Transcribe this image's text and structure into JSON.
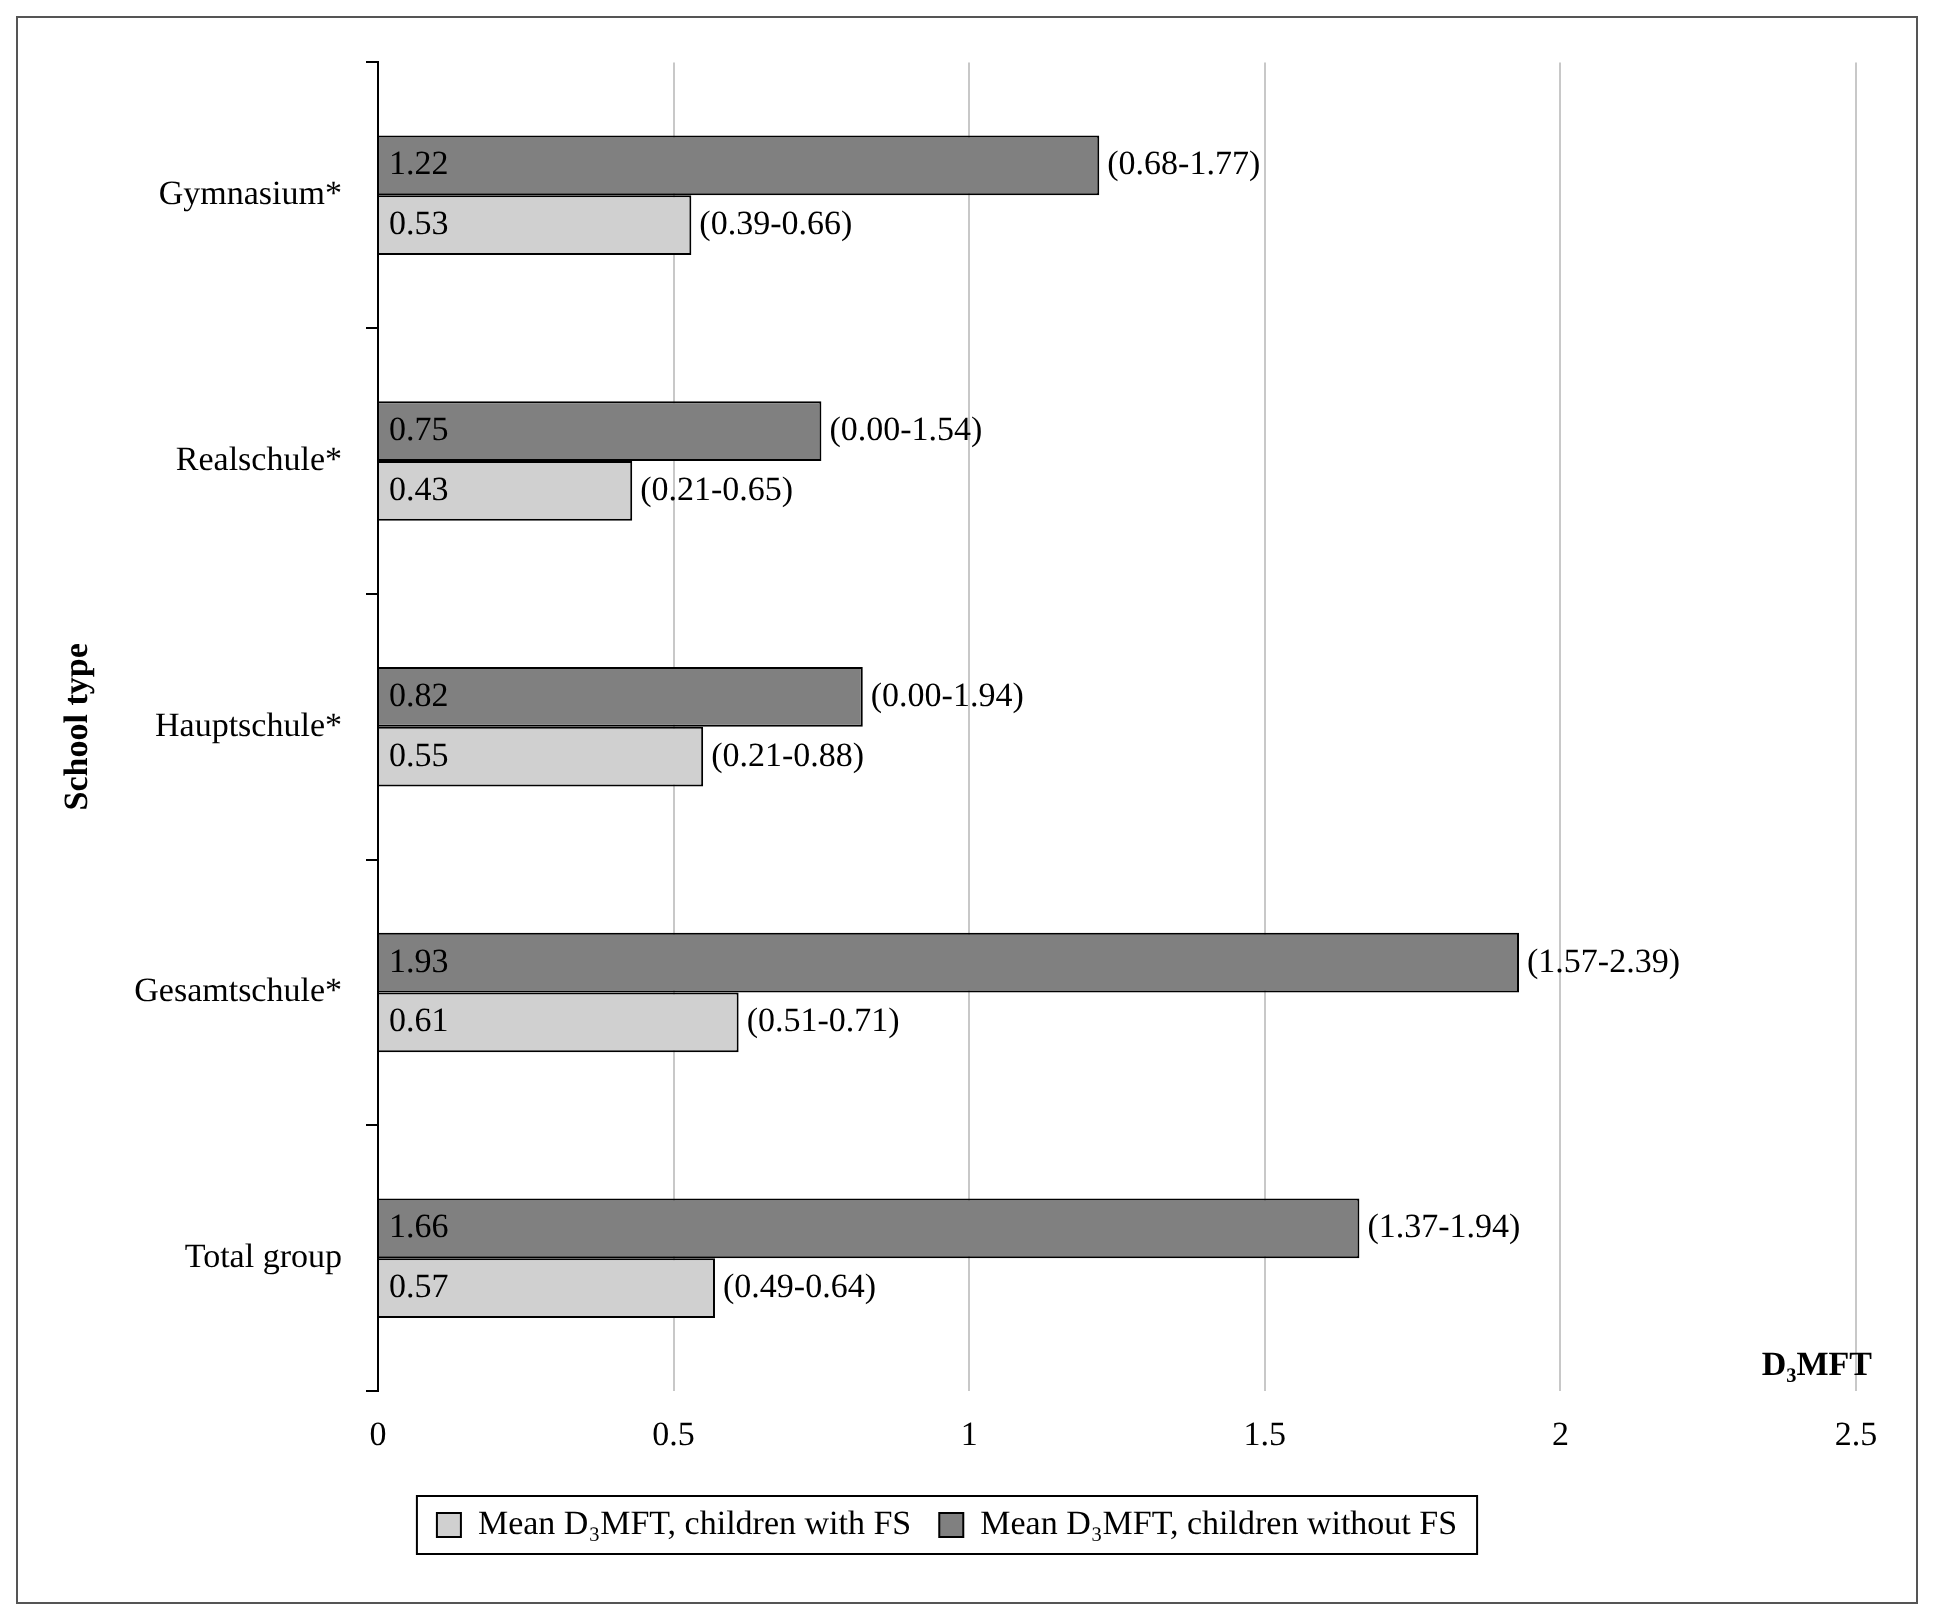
{
  "chart_data": {
    "type": "bar",
    "orientation": "horizontal",
    "xlabel": "D₃MFT",
    "ylabel": "School type",
    "categories": [
      "Gymnasium*",
      "Realschule*",
      "Hauptschule*",
      "Gesamtschule*",
      "Total group"
    ],
    "series": [
      {
        "name": "Mean D₃MFT, children with FS",
        "color": "#d0d0d0",
        "values": [
          0.53,
          0.43,
          0.55,
          0.61,
          0.57
        ]
      },
      {
        "name": "Mean D₃MFT, children without FS",
        "color": "#808080",
        "values": [
          1.22,
          0.75,
          0.82,
          1.93,
          1.66
        ]
      }
    ],
    "annotations": [
      {
        "text": "(0.39-0.66)",
        "x": 0.53,
        "y": "Gymnasium*"
      },
      {
        "text": "(0.68-1.77)",
        "x": 1.22,
        "y": "Gymnasium*"
      },
      {
        "text": "(0.21-0.65)",
        "x": 0.43,
        "y": "Realschule*"
      },
      {
        "text": "(0.00-1.54)",
        "x": 0.75,
        "y": "Realschule*"
      },
      {
        "text": "(0.21-0.88)",
        "x": 0.55,
        "y": "Hauptschule*"
      },
      {
        "text": "(0.00-1.94)",
        "x": 0.82,
        "y": "Hauptschule*"
      },
      {
        "text": "(0.51-0.71)",
        "x": 0.61,
        "y": "Gesamtschule*"
      },
      {
        "text": "(1.57-2.39)",
        "x": 1.93,
        "y": "Gesamtschule*"
      },
      {
        "text": "(0.49-0.64)",
        "x": 0.57,
        "y": "Total group"
      },
      {
        "text": "(1.37-1.94)",
        "x": 1.66,
        "y": "Total group"
      }
    ],
    "xlim": [
      0,
      2.5
    ],
    "xticks": [
      0,
      0.5,
      1,
      1.5,
      2,
      2.5
    ],
    "grid": "x",
    "legend": "bottom",
    "data_labels": true
  }
}
